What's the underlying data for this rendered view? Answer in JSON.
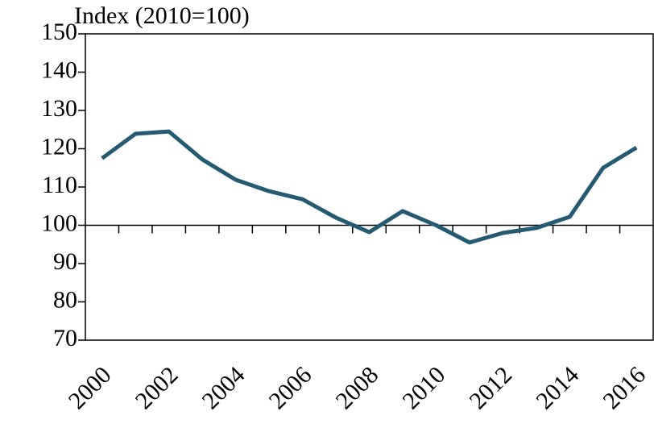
{
  "chart_data": {
    "type": "line",
    "y_axis_label": "Index (2010=100)",
    "categories": [
      "2000",
      null,
      "2002",
      null,
      "2004",
      null,
      "2006",
      null,
      "2008",
      null,
      "2010",
      null,
      "2012",
      null,
      "2014",
      null,
      "2016"
    ],
    "series": [
      {
        "name": "Index",
        "color": "#245a72",
        "values": [
          117.5,
          123.9,
          124.5,
          117.2,
          111.9,
          108.9,
          106.8,
          102,
          98.2,
          103.7,
          100,
          95.5,
          98,
          99.3,
          102.2,
          115,
          120.3
        ]
      }
    ],
    "ylim": [
      70,
      150
    ],
    "yticks": [
      70,
      80,
      90,
      100,
      110,
      120,
      130,
      140,
      150
    ],
    "grid": false
  }
}
